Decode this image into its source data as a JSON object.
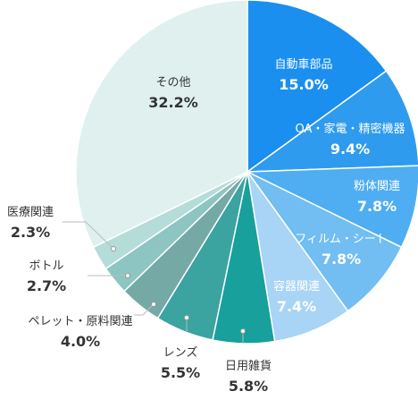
{
  "chart_data": {
    "type": "pie",
    "unit": "%",
    "slices": [
      {
        "label": "自動車部品",
        "value": 15.0,
        "display": "15.0%",
        "color": "#1a8ff0"
      },
      {
        "label": "OA・家電・精密機器",
        "value": 9.4,
        "display": "9.4%",
        "color": "#2f9bef"
      },
      {
        "label": "粉体関連",
        "value": 7.8,
        "display": "7.8%",
        "color": "#4fadf2"
      },
      {
        "label": "フィルム・シート",
        "value": 7.8,
        "display": "7.8%",
        "color": "#72bdf2"
      },
      {
        "label": "容器関連",
        "value": 7.4,
        "display": "7.4%",
        "color": "#a8d4f5"
      },
      {
        "label": "日用雑貨",
        "value": 5.8,
        "display": "5.8%",
        "color": "#17a09c"
      },
      {
        "label": "レンズ",
        "value": 5.5,
        "display": "5.5%",
        "color": "#3ba3a0"
      },
      {
        "label": "ペレット・原料関連",
        "value": 4.0,
        "display": "4.0%",
        "color": "#74a9a6"
      },
      {
        "label": "ボトル",
        "value": 2.7,
        "display": "2.7%",
        "color": "#8cc5c2"
      },
      {
        "label": "医療関連",
        "value": 2.3,
        "display": "2.3%",
        "color": "#b4dcd9"
      },
      {
        "label": "その他",
        "value": 32.2,
        "display": "32.2%",
        "color": "#dff0ef"
      }
    ]
  }
}
